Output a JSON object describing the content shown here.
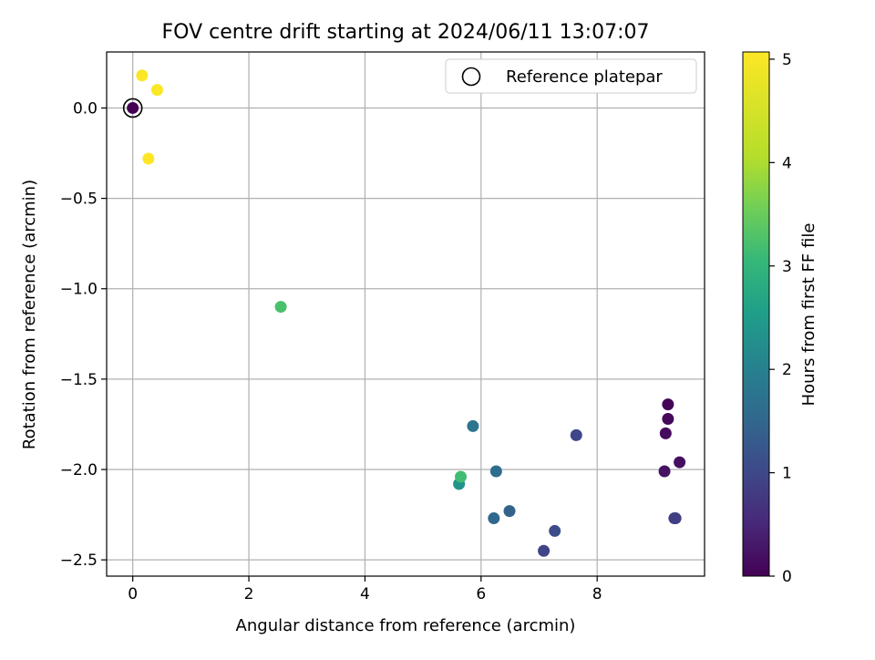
{
  "chart_data": {
    "type": "scatter",
    "title": "FOV centre drift starting at 2024/06/11 13:07:07",
    "xlabel": "Angular distance from reference (arcmin)",
    "ylabel": "Rotation from reference (arcmin)",
    "xlim": [
      -0.45,
      9.85
    ],
    "ylim": [
      -2.59,
      0.31
    ],
    "x_ticks": [
      0,
      2,
      4,
      6,
      8
    ],
    "y_ticks": [
      0.0,
      -0.5,
      -1.0,
      -1.5,
      -2.0,
      -2.5
    ],
    "x_tick_labels": [
      "0",
      "2",
      "4",
      "6",
      "8"
    ],
    "y_tick_labels": [
      "0.0",
      "−0.5",
      "−1.0",
      "−1.5",
      "−2.0",
      "−2.5"
    ],
    "grid": true,
    "colormap": "viridis",
    "colorbar": {
      "label": "Hours from first FF file",
      "range": [
        0,
        5.07
      ],
      "ticks": [
        0,
        1,
        2,
        3,
        4,
        5
      ],
      "tick_labels": [
        "0",
        "1",
        "2",
        "3",
        "4",
        "5"
      ]
    },
    "legend": {
      "position": "top-right",
      "entries": [
        "Reference platepar"
      ]
    },
    "reference_point": {
      "x": 0.0,
      "y": 0.0
    },
    "points": [
      {
        "x": 0.0,
        "y": 0.0,
        "hours": 0.0
      },
      {
        "x": 9.22,
        "y": -1.64,
        "hours": 0.05
      },
      {
        "x": 9.22,
        "y": -1.72,
        "hours": 0.1
      },
      {
        "x": 9.18,
        "y": -1.8,
        "hours": 0.15
      },
      {
        "x": 9.42,
        "y": -1.96,
        "hours": 0.2
      },
      {
        "x": 9.16,
        "y": -2.01,
        "hours": 0.25
      },
      {
        "x": 9.33,
        "y": -2.27,
        "hours": 0.9
      },
      {
        "x": 9.35,
        "y": -2.27,
        "hours": 0.95
      },
      {
        "x": 7.64,
        "y": -1.81,
        "hours": 1.1
      },
      {
        "x": 7.08,
        "y": -2.45,
        "hours": 1.05
      },
      {
        "x": 7.27,
        "y": -2.34,
        "hours": 1.2
      },
      {
        "x": 6.49,
        "y": -2.23,
        "hours": 1.6
      },
      {
        "x": 6.22,
        "y": -2.27,
        "hours": 1.7
      },
      {
        "x": 6.26,
        "y": -2.01,
        "hours": 1.8
      },
      {
        "x": 5.86,
        "y": -1.76,
        "hours": 2.0
      },
      {
        "x": 5.62,
        "y": -2.08,
        "hours": 2.6
      },
      {
        "x": 5.65,
        "y": -2.04,
        "hours": 3.5
      },
      {
        "x": 2.55,
        "y": -1.1,
        "hours": 3.6
      },
      {
        "x": 0.16,
        "y": 0.18,
        "hours": 5.05
      },
      {
        "x": 0.42,
        "y": 0.1,
        "hours": 5.05
      },
      {
        "x": 0.27,
        "y": -0.28,
        "hours": 5.07
      }
    ]
  }
}
